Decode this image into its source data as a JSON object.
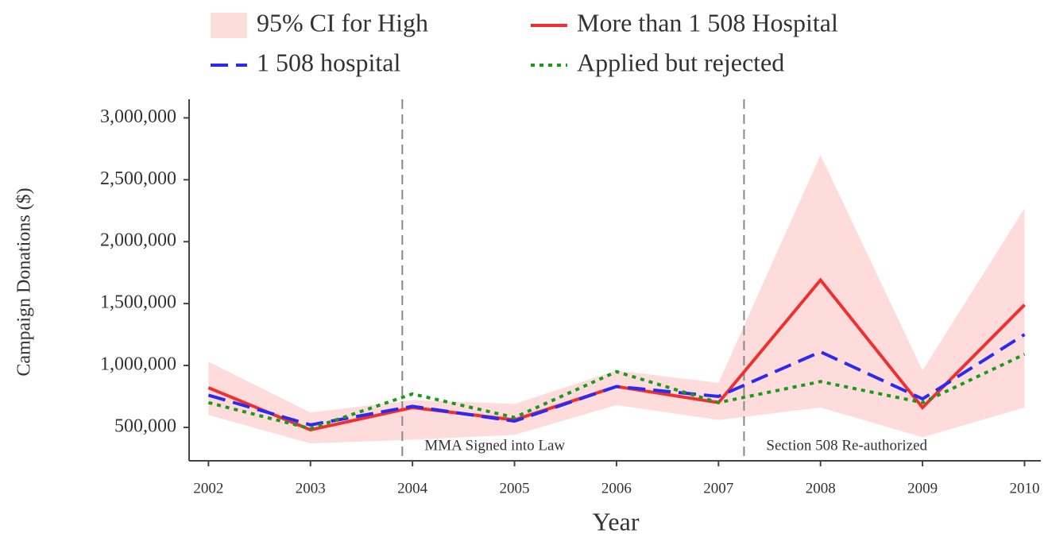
{
  "chart_data": {
    "type": "line",
    "xlabel": "Year",
    "ylabel": "Campaign Donations ($)",
    "x": [
      2002,
      2003,
      2004,
      2005,
      2006,
      2007,
      2008,
      2009,
      2010
    ],
    "xlim": [
      2001.81,
      2010.16
    ],
    "xticks": [
      2002,
      2003,
      2004,
      2005,
      2006,
      2007,
      2008,
      2009,
      2010
    ],
    "ylim": [
      230000,
      3150000
    ],
    "yticks": [
      {
        "value": 500000,
        "label": "500,000"
      },
      {
        "value": 1000000,
        "label": "1,000,000"
      },
      {
        "value": 1500000,
        "label": "1,500,000"
      },
      {
        "value": 2000000,
        "label": "2,000,000"
      },
      {
        "value": 2500000,
        "label": "2,500,000"
      },
      {
        "value": 3000000,
        "label": "3,000,000"
      }
    ],
    "ci": {
      "name": "95% CI for High",
      "color": "#ffdcdc",
      "lower": [
        600000,
        370000,
        400000,
        440000,
        680000,
        560000,
        660000,
        420000,
        660000
      ],
      "upper": [
        1030000,
        620000,
        720000,
        690000,
        960000,
        860000,
        2700000,
        960000,
        2270000
      ]
    },
    "series": [
      {
        "name": "More than 1 508 Hospital",
        "color": "#f03030",
        "dash": "solid",
        "values": [
          820000,
          480000,
          660000,
          560000,
          830000,
          700000,
          1690000,
          660000,
          1490000
        ]
      },
      {
        "name": "1 508 hospital",
        "color": "#2a2af0",
        "dash": "dashed",
        "values": [
          760000,
          520000,
          670000,
          550000,
          830000,
          750000,
          1110000,
          730000,
          1250000
        ]
      },
      {
        "name": "Applied but rejected",
        "color": "#1a9a1a",
        "dash": "dotted",
        "values": [
          700000,
          490000,
          770000,
          580000,
          950000,
          700000,
          870000,
          700000,
          1090000
        ]
      }
    ],
    "vlines": [
      {
        "x": 2003.9,
        "label": "MMA Signed into Law"
      },
      {
        "x": 2007.25,
        "label": "Section 508 Re-authorized"
      }
    ]
  }
}
